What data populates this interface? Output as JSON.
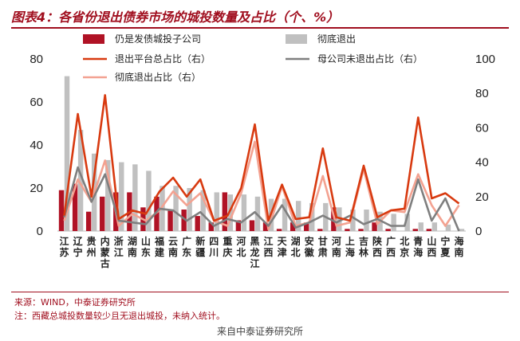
{
  "header": {
    "title": "图表4：各省份退出债券市场的城投数量及占比（个、%）"
  },
  "footer": {
    "source": "来源：WIND，中泰证券研究所",
    "note": "注：西藏总城投数量较少且无退出城投，未纳入统计。",
    "watermark": "来自中泰证券研究所"
  },
  "chart_data": {
    "type": "bar",
    "title": "",
    "categories": [
      "江苏",
      "辽宁",
      "贵州",
      "内蒙古",
      "浙江",
      "湖南",
      "山东",
      "福建",
      "云南",
      "广东",
      "新疆",
      "四川",
      "重庆",
      "河北",
      "黑龙江",
      "江西",
      "天津",
      "湖北",
      "安徽",
      "甘肃",
      "河南",
      "上海",
      "吉林",
      "陕西",
      "广西",
      "北京",
      "青海",
      "山西",
      "宁夏",
      "海南"
    ],
    "left_axis": {
      "ylim": [
        0,
        80
      ],
      "ticks": [
        0,
        20,
        40,
        60,
        80
      ]
    },
    "right_axis": {
      "ylim": [
        0,
        100
      ],
      "ticks": [
        0,
        20,
        40,
        60,
        80,
        100
      ]
    },
    "series": [
      {
        "name": "仍是发债城投子公司",
        "type": "bar",
        "axis": "left",
        "color": "#b01225",
        "values": [
          19,
          22,
          9,
          16,
          18,
          18,
          11,
          16,
          10,
          10,
          7,
          4,
          18,
          5,
          5,
          4,
          1,
          4,
          4,
          1,
          11,
          1,
          1,
          4,
          1,
          0,
          1,
          1,
          0,
          0
        ]
      },
      {
        "name": "彻底退出",
        "type": "bar",
        "axis": "left",
        "color": "#c0c0c0",
        "values": [
          72,
          47,
          36,
          33,
          32,
          31,
          28,
          21,
          21,
          20,
          19,
          18,
          17,
          17,
          16,
          15,
          15,
          14,
          13,
          13,
          11,
          10,
          10,
          9,
          8,
          8,
          4,
          4,
          3,
          1
        ]
      },
      {
        "name": "退出平台总占比（右）",
        "type": "line",
        "axis": "right",
        "color": "#d83a10",
        "values": [
          9,
          68,
          20,
          79,
          7,
          12,
          10,
          23,
          31,
          20,
          30,
          6,
          9,
          25,
          62,
          6,
          27,
          7,
          8,
          48,
          8,
          6,
          38,
          8,
          12,
          13,
          66,
          19,
          22,
          16
        ]
      },
      {
        "name": "母公司未退出占比（右）",
        "type": "line",
        "axis": "right",
        "color": "#7f7f7f",
        "values": [
          8,
          37,
          17,
          33,
          6,
          5,
          4,
          13,
          12,
          6,
          11,
          3,
          7,
          5,
          11,
          3,
          15,
          2,
          5,
          9,
          5,
          9,
          4,
          7,
          3,
          3,
          30,
          6,
          19,
          0
        ]
      },
      {
        "name": "彻底退出占比（右）",
        "type": "line",
        "axis": "right",
        "color": "#f3a291",
        "values": [
          6,
          30,
          17,
          41,
          3,
          10,
          6,
          12,
          23,
          15,
          22,
          6,
          3,
          22,
          52,
          1,
          26,
          3,
          5,
          32,
          3,
          5,
          36,
          4,
          12,
          11,
          33,
          15,
          3,
          15
        ]
      }
    ],
    "legend": "top"
  }
}
